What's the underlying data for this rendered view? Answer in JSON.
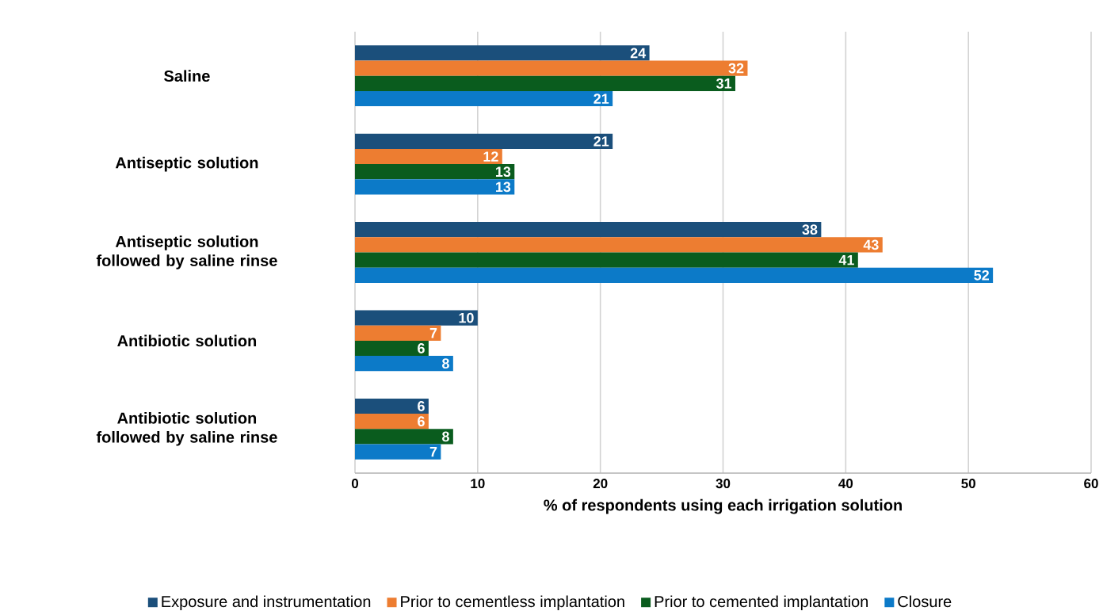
{
  "chart_data": {
    "type": "bar",
    "orientation": "horizontal",
    "categories": [
      "Saline",
      "Antiseptic solution",
      "Antiseptic solution followed by saline rinse",
      "Antibiotic solution",
      "Antibiotic solution followed by saline rinse"
    ],
    "series": [
      {
        "name": "Exposure and instrumentation",
        "color": "#1b4f7b",
        "values": [
          24,
          21,
          38,
          10,
          6
        ]
      },
      {
        "name": "Prior to cementless implantation",
        "color": "#ed7d31",
        "values": [
          32,
          12,
          43,
          7,
          6
        ]
      },
      {
        "name": "Prior to cemented implantation",
        "color": "#0a5c1e",
        "values": [
          31,
          13,
          41,
          6,
          8
        ]
      },
      {
        "name": "Closure",
        "color": "#0c7ac8",
        "values": [
          21,
          13,
          52,
          8,
          7
        ]
      }
    ],
    "xlabel": "% of respondents using each irrigation solution",
    "xlim": [
      0,
      60
    ],
    "xticks": [
      0,
      10,
      20,
      30,
      40,
      50,
      60
    ],
    "grid": "x",
    "legend": "bottom",
    "data_labels": true
  }
}
